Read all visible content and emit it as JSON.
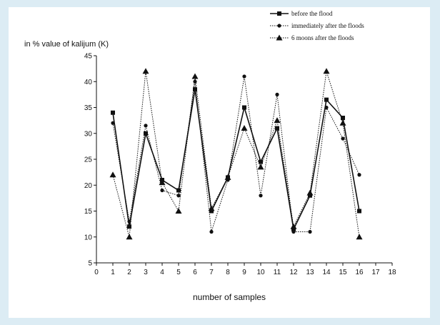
{
  "chart_data": {
    "type": "line",
    "ylabel": "in % value of kalijum (K)",
    "xlabel": "number of samples",
    "xlim": [
      0,
      18
    ],
    "ylim": [
      5,
      45
    ],
    "xticks": [
      0,
      1,
      2,
      3,
      4,
      5,
      6,
      7,
      8,
      9,
      10,
      11,
      12,
      13,
      14,
      15,
      16,
      17,
      18
    ],
    "yticks": [
      5,
      10,
      15,
      20,
      25,
      30,
      35,
      40,
      45
    ],
    "grid": false,
    "legend_position": "top-right",
    "x": [
      1,
      2,
      3,
      4,
      5,
      6,
      7,
      8,
      9,
      10,
      11,
      12,
      13,
      14,
      15,
      16
    ],
    "series": [
      {
        "name": "before the flood",
        "marker": "square",
        "style": "solid",
        "values": [
          34,
          12,
          30,
          21,
          19,
          38.5,
          15,
          21.5,
          35,
          24.5,
          31,
          11.5,
          18,
          36.5,
          33,
          15
        ]
      },
      {
        "name": "immediately after the floods",
        "marker": "circle",
        "style": "dotted",
        "values": [
          32,
          13,
          31.5,
          19,
          18,
          40,
          11,
          21,
          41,
          18,
          37.5,
          11,
          11,
          35,
          29,
          22
        ]
      },
      {
        "name": "6 moons after the floods",
        "marker": "triangle",
        "style": "dotted",
        "values": [
          22,
          10,
          42,
          20.5,
          15,
          41,
          15.5,
          21.5,
          31,
          23.5,
          32.5,
          12,
          18.5,
          42,
          32,
          10
        ]
      }
    ]
  }
}
